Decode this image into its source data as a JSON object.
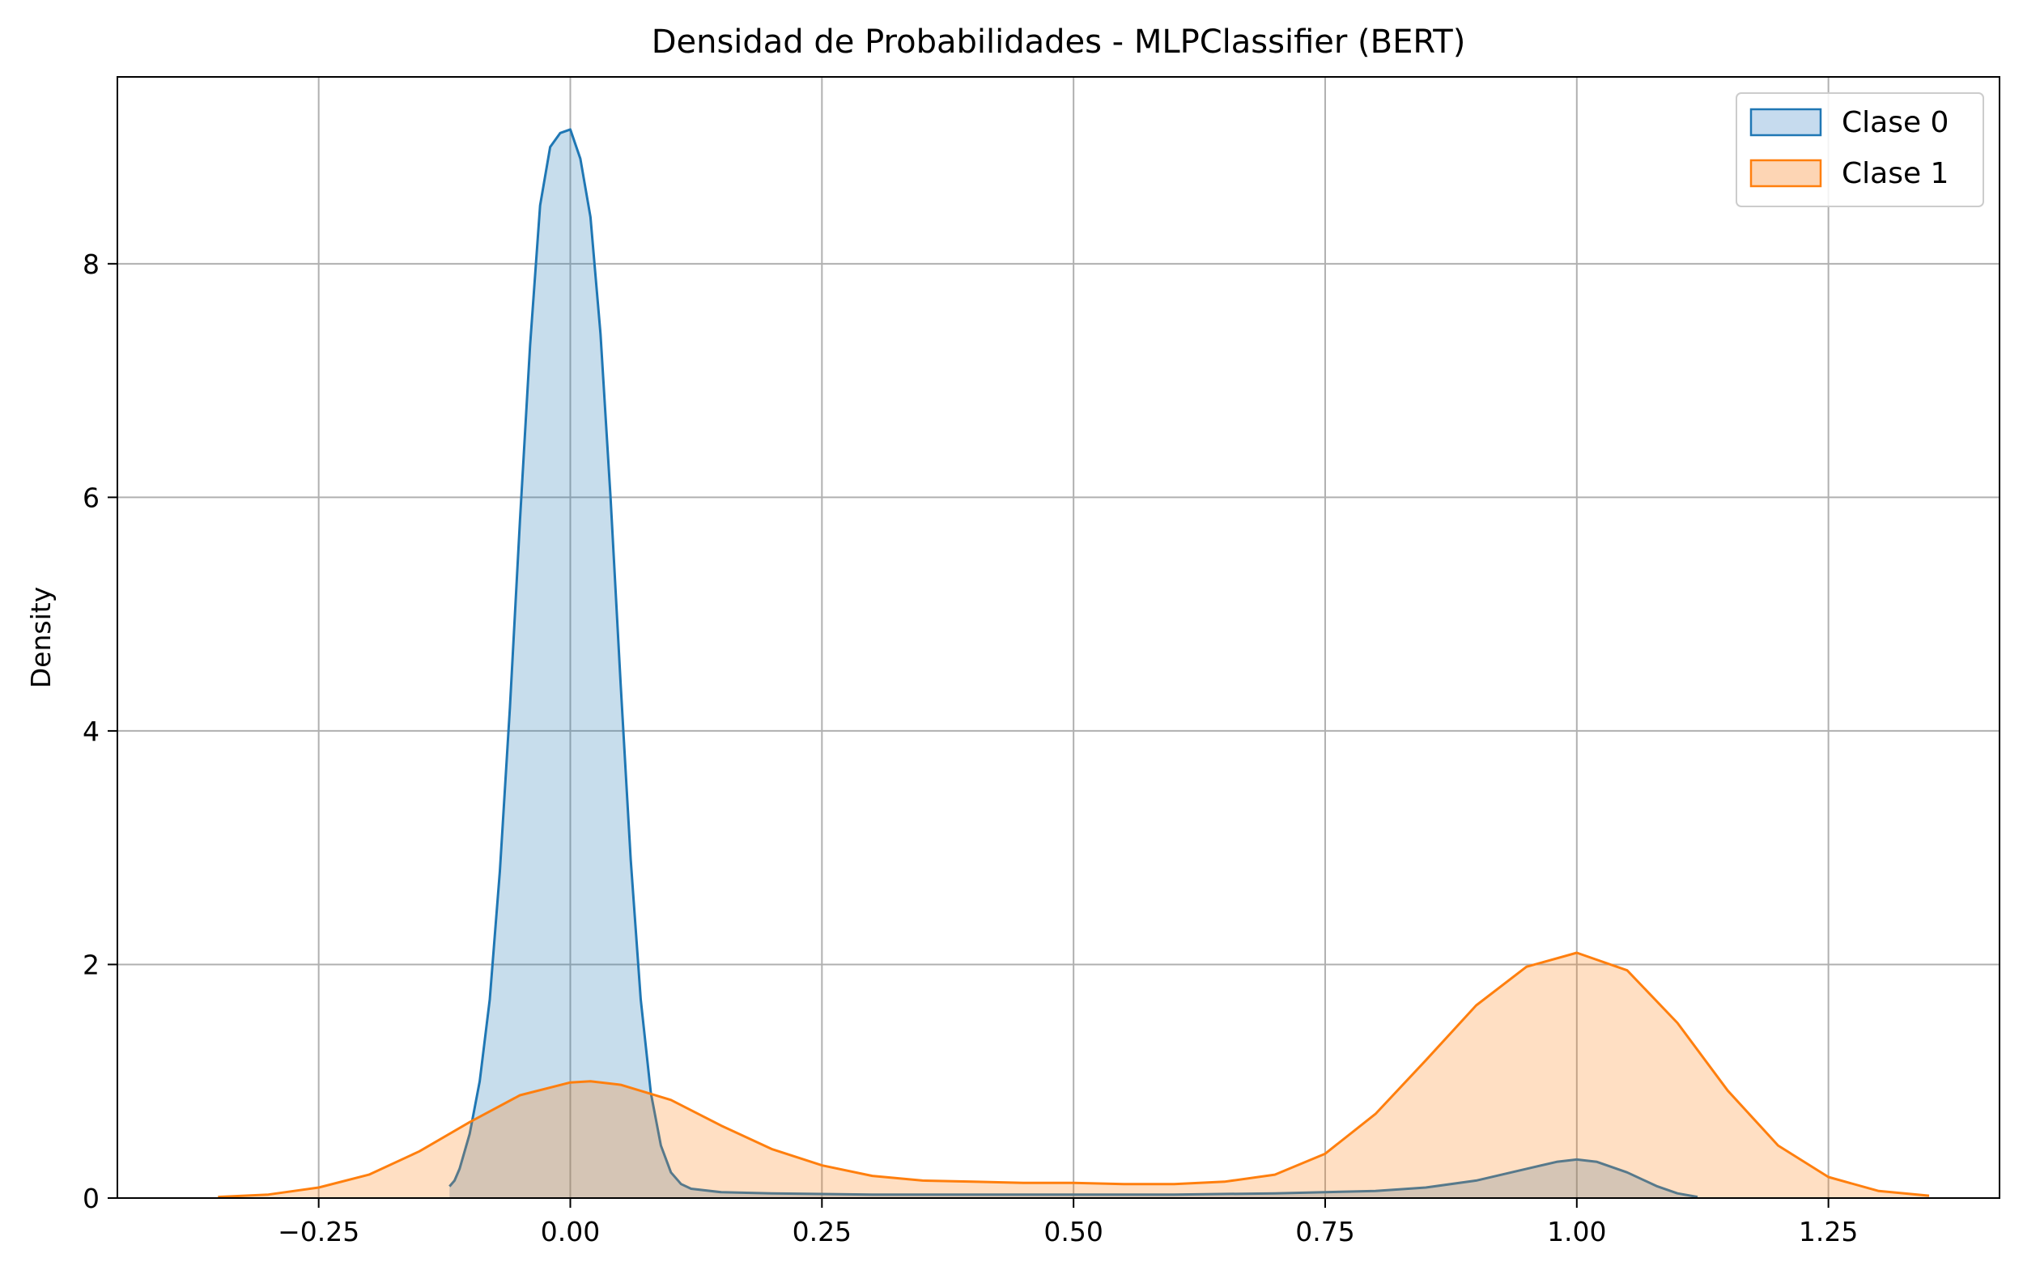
{
  "chart_data": {
    "type": "area",
    "title": "Densidad de Probabilidades - MLPClassifier (BERT)",
    "xlabel": "",
    "ylabel": "Density",
    "xlim": [
      -0.45,
      1.42
    ],
    "ylim": [
      0,
      9.6
    ],
    "x_ticks": [
      -0.25,
      0.0,
      0.25,
      0.5,
      0.75,
      1.0,
      1.25
    ],
    "x_tick_labels": [
      "−0.25",
      "0.00",
      "0.25",
      "0.50",
      "0.75",
      "1.00",
      "1.25"
    ],
    "y_ticks": [
      0,
      2,
      4,
      6,
      8
    ],
    "y_tick_labels": [
      "0",
      "2",
      "4",
      "6",
      "8"
    ],
    "grid": true,
    "legend_position": "top-right",
    "series": [
      {
        "name": "Clase 0",
        "color": "#1f77b4",
        "fill": "#c6dbee",
        "x": [
          -0.12,
          -0.115,
          -0.11,
          -0.1,
          -0.09,
          -0.08,
          -0.07,
          -0.06,
          -0.05,
          -0.04,
          -0.03,
          -0.02,
          -0.01,
          0.0,
          0.01,
          0.02,
          0.03,
          0.04,
          0.05,
          0.06,
          0.07,
          0.08,
          0.09,
          0.1,
          0.11,
          0.12,
          0.15,
          0.2,
          0.3,
          0.4,
          0.5,
          0.6,
          0.7,
          0.8,
          0.85,
          0.9,
          0.95,
          0.98,
          1.0,
          1.02,
          1.05,
          1.08,
          1.1,
          1.12
        ],
        "y": [
          0.1,
          0.15,
          0.25,
          0.55,
          1.0,
          1.7,
          2.8,
          4.2,
          5.8,
          7.3,
          8.5,
          9.0,
          9.12,
          9.15,
          8.9,
          8.4,
          7.4,
          6.0,
          4.4,
          2.9,
          1.7,
          0.9,
          0.45,
          0.22,
          0.12,
          0.08,
          0.05,
          0.04,
          0.03,
          0.03,
          0.03,
          0.03,
          0.04,
          0.06,
          0.09,
          0.15,
          0.25,
          0.31,
          0.33,
          0.31,
          0.22,
          0.1,
          0.04,
          0.01
        ]
      },
      {
        "name": "Clase 1",
        "color": "#ff7f0e",
        "fill": "#fdd5b4",
        "x": [
          -0.35,
          -0.3,
          -0.25,
          -0.2,
          -0.15,
          -0.1,
          -0.05,
          0.0,
          0.02,
          0.05,
          0.1,
          0.15,
          0.2,
          0.25,
          0.3,
          0.35,
          0.4,
          0.45,
          0.5,
          0.55,
          0.6,
          0.65,
          0.7,
          0.75,
          0.8,
          0.85,
          0.9,
          0.95,
          1.0,
          1.05,
          1.1,
          1.15,
          1.2,
          1.25,
          1.3,
          1.35
        ],
        "y": [
          0.01,
          0.03,
          0.09,
          0.2,
          0.4,
          0.65,
          0.88,
          0.99,
          1.0,
          0.97,
          0.84,
          0.62,
          0.42,
          0.28,
          0.19,
          0.15,
          0.14,
          0.13,
          0.13,
          0.12,
          0.12,
          0.14,
          0.2,
          0.38,
          0.72,
          1.18,
          1.65,
          1.98,
          2.1,
          1.95,
          1.5,
          0.92,
          0.45,
          0.18,
          0.06,
          0.02
        ]
      }
    ]
  }
}
